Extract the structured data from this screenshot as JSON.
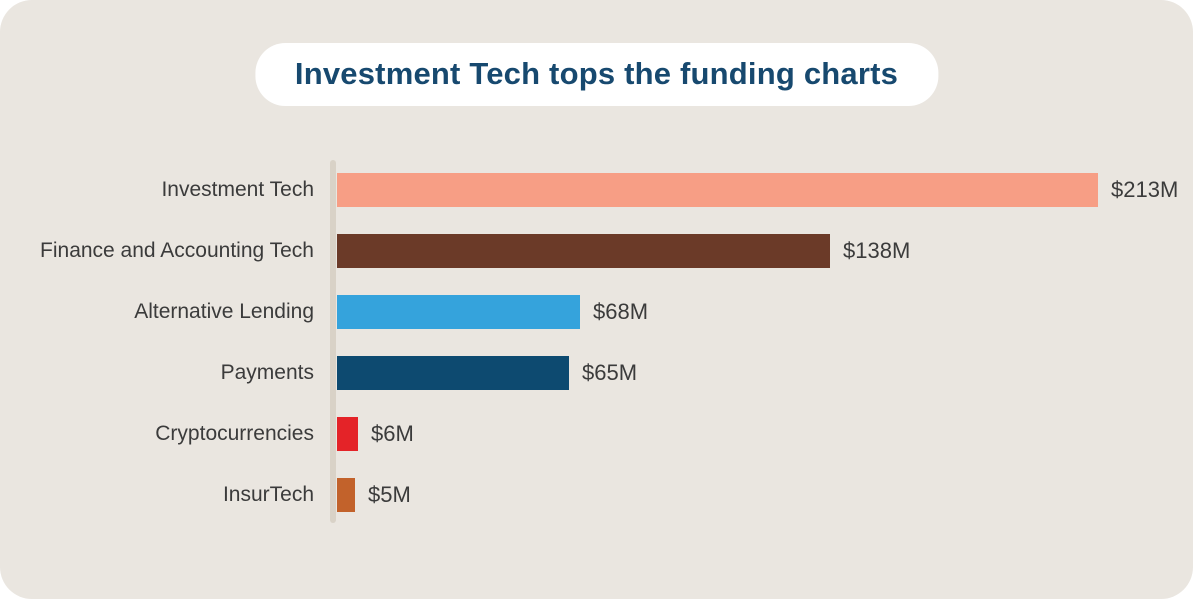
{
  "title": "Investment Tech tops the funding charts",
  "colors": {
    "page_bg": "#ffffff",
    "card_bg": "#eae6e0",
    "title_text": "#17496f",
    "title_pill_bg": "#ffffff",
    "label_text": "#3b3b3b",
    "axis_line": "#d9d2c7"
  },
  "chart_data": {
    "type": "bar",
    "orientation": "horizontal",
    "title": "Investment Tech tops the funding charts",
    "categories": [
      "Investment Tech",
      "Finance and Accounting Tech",
      "Alternative Lending",
      "Payments",
      "Cryptocurrencies",
      "InsurTech"
    ],
    "values": [
      213,
      138,
      68,
      65,
      6,
      5
    ],
    "value_labels": [
      "$213M",
      "$138M",
      "$68M",
      "$65M",
      "$6M",
      "$5M"
    ],
    "bar_colors": [
      "#f79e85",
      "#6b3a28",
      "#35a3dc",
      "#0d4a70",
      "#e42328",
      "#c2622b"
    ],
    "xlim": [
      0,
      213
    ],
    "grid": false,
    "legend": false,
    "value_labels_position": "right-of-bar",
    "category_labels_position": "left-of-axis"
  }
}
